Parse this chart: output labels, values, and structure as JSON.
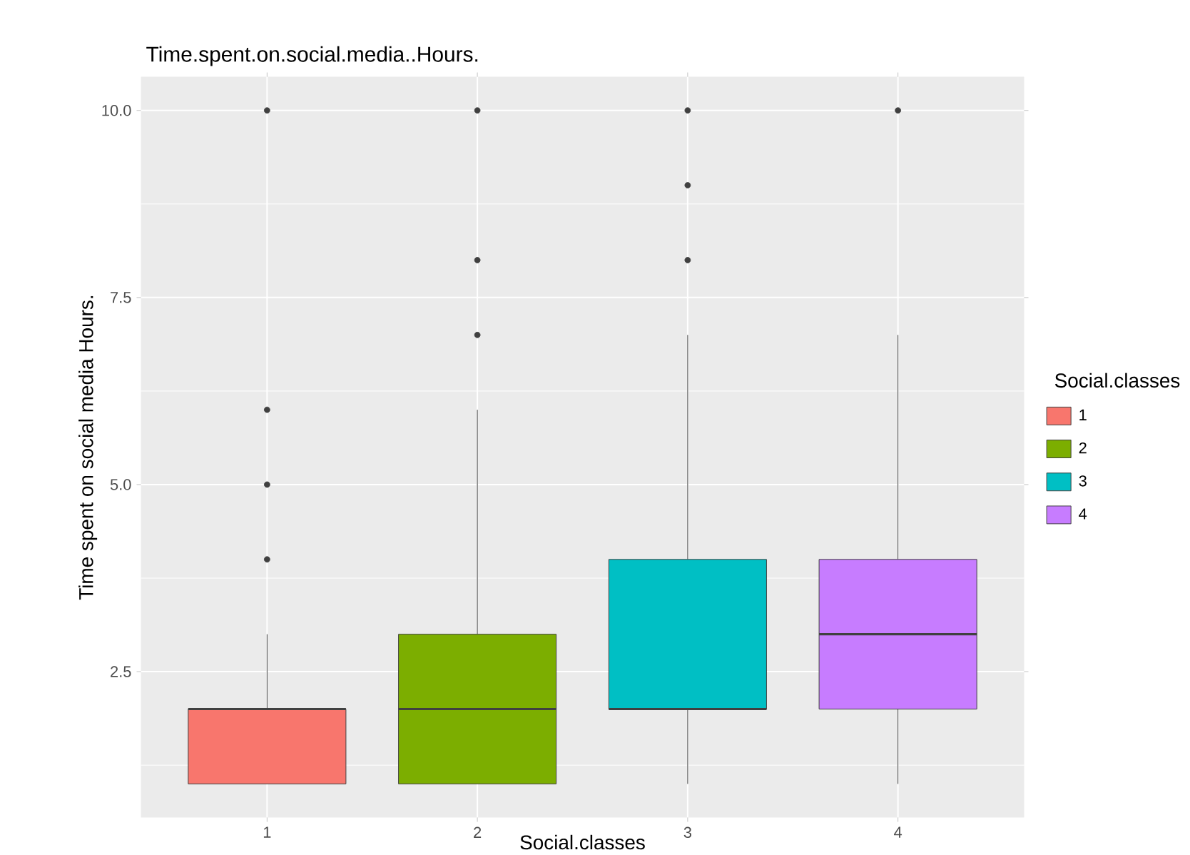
{
  "chart_data": {
    "type": "box",
    "title": "Time.spent.on.social.media..Hours.",
    "xlabel": "Social.classes",
    "ylabel": "Time spent on social media Hours.",
    "legend_title": "Social.classes",
    "categories": [
      "1",
      "2",
      "3",
      "4"
    ],
    "series": [
      {
        "name": "1",
        "color": "#f8766d",
        "boxes": [
          {
            "low": 1,
            "q1": 1,
            "median": 2,
            "q3": 2,
            "high": 3,
            "outliers": [
              4,
              5,
              6,
              10
            ]
          },
          null,
          null,
          null
        ]
      },
      {
        "name": "2",
        "color": "#7cae00",
        "boxes": [
          null,
          {
            "low": 1,
            "q1": 1,
            "median": 2,
            "q3": 3,
            "high": 6,
            "outliers": [
              7,
              8,
              10
            ]
          },
          null,
          null
        ]
      },
      {
        "name": "3",
        "color": "#00bfc4",
        "boxes": [
          null,
          null,
          {
            "low": 1,
            "q1": 2,
            "median": 2,
            "q3": 4,
            "high": 7,
            "outliers": [
              8,
              9,
              10
            ]
          },
          null
        ]
      },
      {
        "name": "4",
        "color": "#c77cff",
        "boxes": [
          null,
          null,
          null,
          {
            "low": 1,
            "q1": 2,
            "median": 3,
            "q3": 4,
            "high": 7,
            "outliers": [
              10
            ]
          }
        ]
      }
    ],
    "ylim": [
      0.55,
      10.45
    ],
    "yticks": [
      {
        "value": 2.5,
        "label": "2.5"
      },
      {
        "value": 5,
        "label": "5.0"
      },
      {
        "value": 7.5,
        "label": "7.5"
      },
      {
        "value": 10,
        "label": "10.0"
      }
    ],
    "grid": true,
    "legend": "right"
  }
}
